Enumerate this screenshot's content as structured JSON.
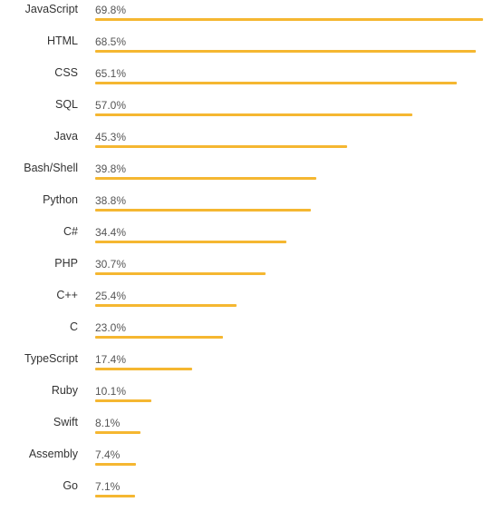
{
  "chart_data": {
    "type": "bar",
    "orientation": "horizontal",
    "categories": [
      "JavaScript",
      "HTML",
      "CSS",
      "SQL",
      "Java",
      "Bash/Shell",
      "Python",
      "C#",
      "PHP",
      "C++",
      "C",
      "TypeScript",
      "Ruby",
      "Swift",
      "Assembly",
      "Go"
    ],
    "values": [
      69.8,
      68.5,
      65.1,
      57.0,
      45.3,
      39.8,
      38.8,
      34.4,
      30.7,
      25.4,
      23.0,
      17.4,
      10.1,
      8.1,
      7.4,
      7.1
    ],
    "value_labels": [
      "69.8%",
      "68.5%",
      "65.1%",
      "57.0%",
      "45.3%",
      "39.8%",
      "38.8%",
      "34.4%",
      "30.7%",
      "25.4%",
      "23.0%",
      "17.4%",
      "10.1%",
      "8.1%",
      "7.4%",
      "7.1%"
    ],
    "xlim": [
      0,
      69.8
    ],
    "grid": false,
    "legend": "none",
    "bar_color": "#F5B731"
  }
}
